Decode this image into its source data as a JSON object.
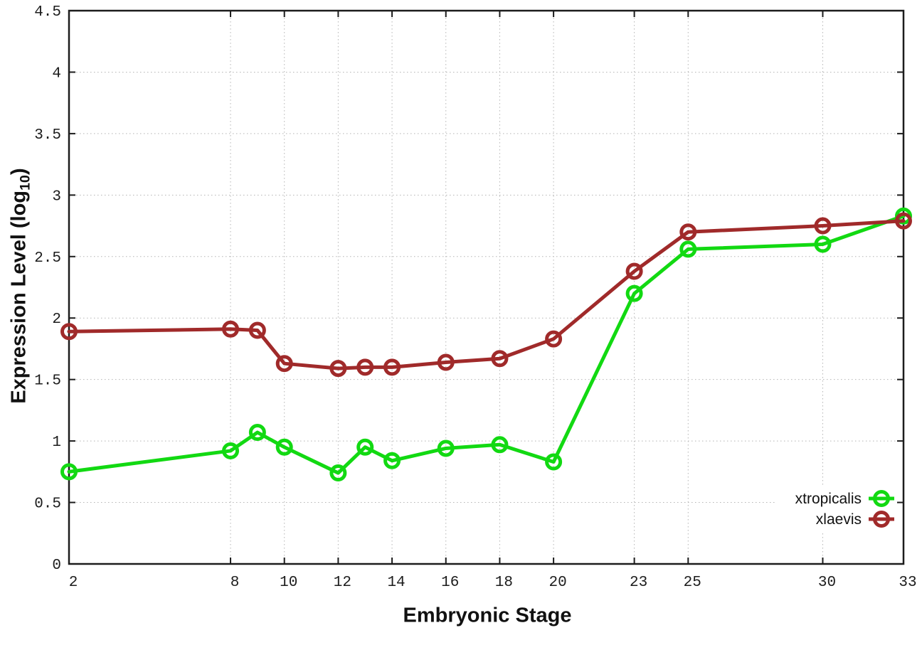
{
  "figure": {
    "background": "#ffffff",
    "border_color": "#1c1c1c",
    "grid_color": "#b4b4b4",
    "tick_label_color": "#1c1c1c"
  },
  "chart_data": {
    "type": "line",
    "title": "",
    "xlabel": "Embryonic Stage",
    "ylabel": {
      "text": "Expression Level (log",
      "subscript": "10",
      "suffix": ")"
    },
    "xlim": [
      2,
      33
    ],
    "ylim": [
      0,
      4.5
    ],
    "x_ticks": [
      2,
      8,
      10,
      12,
      14,
      16,
      18,
      20,
      23,
      25,
      30,
      33
    ],
    "y_ticks": [
      0,
      0.5,
      1,
      1.5,
      2,
      2.5,
      3,
      3.5,
      4,
      4.5
    ],
    "grid": true,
    "legend_position": "bottom-right",
    "x": [
      2,
      8,
      9,
      10,
      12,
      13,
      14,
      16,
      18,
      20,
      23,
      25,
      30,
      33
    ],
    "series": [
      {
        "name": "xtropicalis",
        "color": "#12d912",
        "values": [
          0.75,
          0.92,
          1.07,
          0.95,
          0.74,
          0.95,
          0.84,
          0.94,
          0.97,
          0.83,
          2.2,
          2.56,
          2.6,
          2.83
        ]
      },
      {
        "name": "xlaevis",
        "color": "#a02a2a",
        "values": [
          1.89,
          1.91,
          1.9,
          1.63,
          1.59,
          1.6,
          1.6,
          1.64,
          1.67,
          1.83,
          2.38,
          2.7,
          2.75,
          2.79
        ]
      }
    ]
  }
}
